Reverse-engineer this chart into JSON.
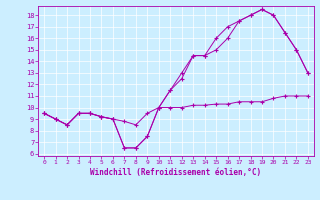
{
  "xlabel": "Windchill (Refroidissement éolien,°C)",
  "background_color": "#cceeff",
  "line_color": "#aa00aa",
  "xlim": [
    -0.5,
    23.5
  ],
  "ylim": [
    5.8,
    18.8
  ],
  "xticks": [
    0,
    1,
    2,
    3,
    4,
    5,
    6,
    7,
    8,
    9,
    10,
    11,
    12,
    13,
    14,
    15,
    16,
    17,
    18,
    19,
    20,
    21,
    22,
    23
  ],
  "yticks": [
    6,
    7,
    8,
    9,
    10,
    11,
    12,
    13,
    14,
    15,
    16,
    17,
    18
  ],
  "lines": [
    {
      "x": [
        0,
        1,
        2,
        3,
        4,
        5,
        6,
        7,
        8,
        9,
        10,
        11,
        12,
        13,
        14,
        15,
        16,
        17,
        18,
        19,
        20,
        21,
        22,
        23
      ],
      "y": [
        9.5,
        9.0,
        8.5,
        9.5,
        9.5,
        9.2,
        9.0,
        8.8,
        8.5,
        9.5,
        10.0,
        10.0,
        10.0,
        10.2,
        10.2,
        10.3,
        10.3,
        10.5,
        10.5,
        10.5,
        10.8,
        11.0,
        11.0,
        11.0
      ]
    },
    {
      "x": [
        0,
        1,
        2,
        3,
        4,
        5,
        6,
        7,
        8,
        9,
        10,
        11,
        12,
        13,
        14,
        15,
        16,
        17,
        18,
        19,
        20,
        21,
        22,
        23
      ],
      "y": [
        9.5,
        9.0,
        8.5,
        9.5,
        9.5,
        9.2,
        9.0,
        6.5,
        6.5,
        7.5,
        10.0,
        11.5,
        13.0,
        14.5,
        14.5,
        16.0,
        17.0,
        17.5,
        18.0,
        18.5,
        18.0,
        16.5,
        15.0,
        13.0
      ]
    },
    {
      "x": [
        0,
        1,
        2,
        3,
        4,
        5,
        6,
        7,
        8,
        9,
        10,
        11,
        12,
        13,
        14,
        15,
        16,
        17,
        18,
        19,
        20,
        21,
        22,
        23
      ],
      "y": [
        9.5,
        9.0,
        8.5,
        9.5,
        9.5,
        9.2,
        9.0,
        6.5,
        6.5,
        7.5,
        10.0,
        11.5,
        12.5,
        14.5,
        14.5,
        15.0,
        16.0,
        17.5,
        18.0,
        18.5,
        18.0,
        16.5,
        15.0,
        13.0
      ]
    }
  ]
}
